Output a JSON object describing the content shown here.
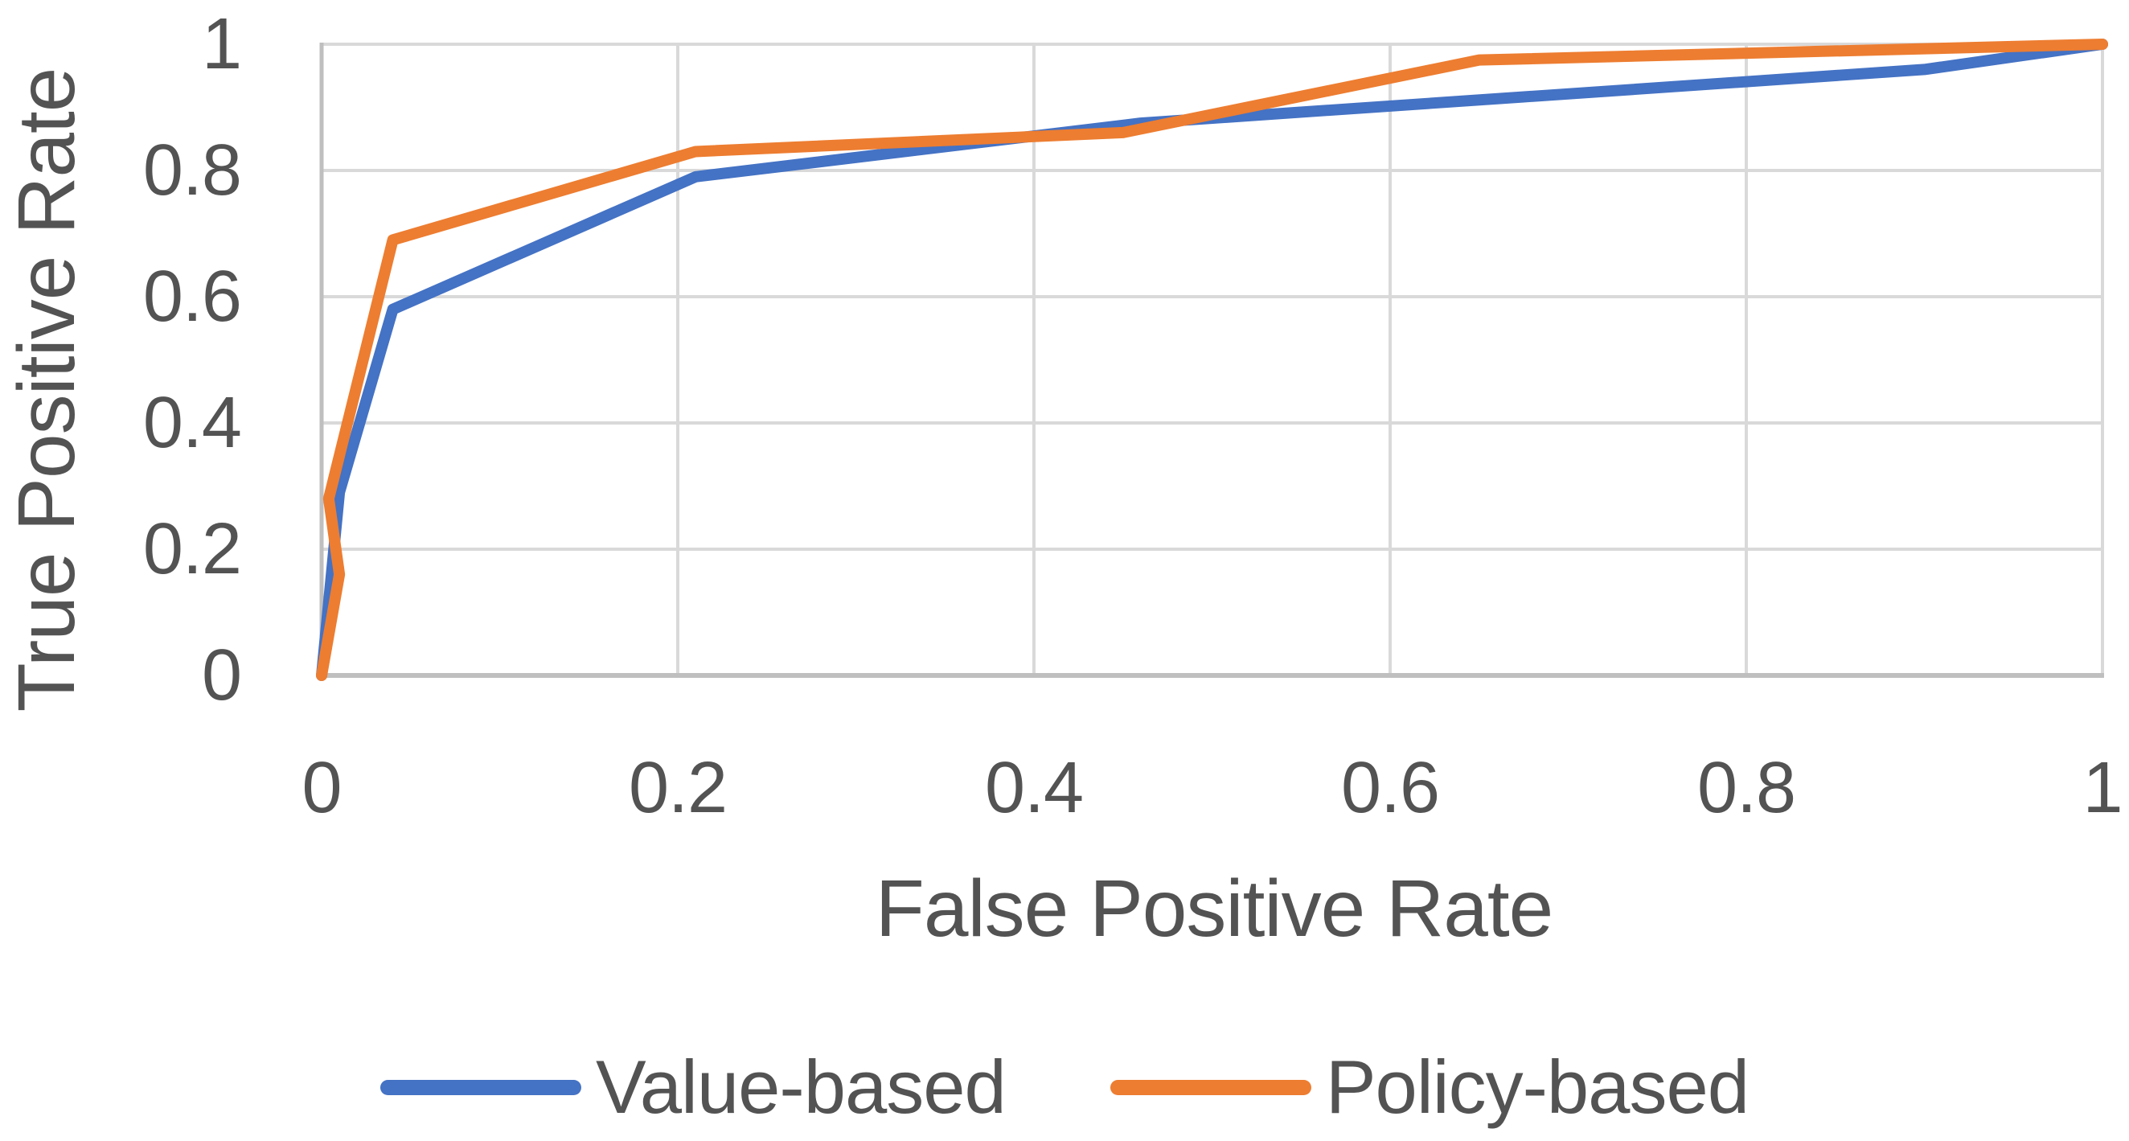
{
  "chart_data": {
    "type": "line",
    "title": "",
    "xlabel": "False Positive Rate",
    "ylabel": "True Positive Rate",
    "xlim": [
      0,
      1
    ],
    "ylim": [
      0,
      1
    ],
    "grid": true,
    "legend_position": "bottom",
    "x_tick_labels": [
      "0",
      "0.2",
      "0.4",
      "0.6",
      "0.8",
      "1"
    ],
    "x_tick_values": [
      0,
      0.2,
      0.4,
      0.6,
      0.8,
      1
    ],
    "y_tick_labels": [
      "0",
      "0.2",
      "0.4",
      "0.6",
      "0.8",
      "1"
    ],
    "y_tick_values": [
      0,
      0.2,
      0.4,
      0.6,
      0.8,
      1
    ],
    "series": [
      {
        "name": "Value-based",
        "color": "#4472C4",
        "points": [
          [
            0,
            0
          ],
          [
            0.01,
            0.29
          ],
          [
            0.04,
            0.58
          ],
          [
            0.21,
            0.79
          ],
          [
            0.46,
            0.875
          ],
          [
            0.9,
            0.96
          ],
          [
            1,
            1
          ]
        ]
      },
      {
        "name": "Policy-based",
        "color": "#ED7D31",
        "points": [
          [
            0,
            0
          ],
          [
            0.01,
            0.16
          ],
          [
            0.004,
            0.28
          ],
          [
            0.04,
            0.69
          ],
          [
            0.21,
            0.83
          ],
          [
            0.45,
            0.86
          ],
          [
            0.65,
            0.975
          ],
          [
            1,
            1
          ]
        ]
      }
    ],
    "colors": {
      "gridline": "#D9D9D9",
      "axis_line": "#BFBFBF",
      "text": "#535353",
      "background": "#FFFFFF"
    }
  }
}
